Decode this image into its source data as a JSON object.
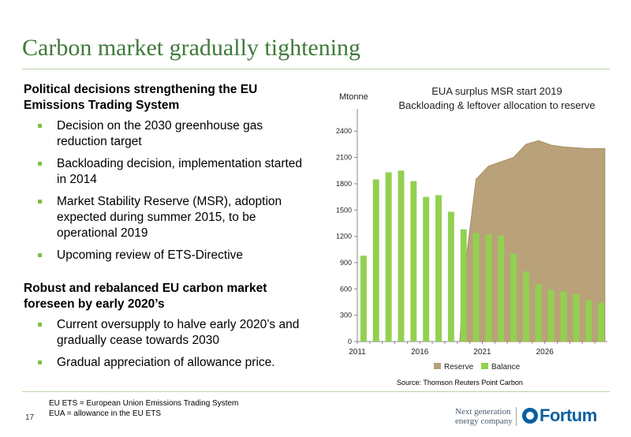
{
  "slide": {
    "title": "Carbon market gradually tightening",
    "page_number": "17"
  },
  "left": {
    "section1": {
      "heading": "Political decisions strengthening the EU Emissions Trading System",
      "bullets": [
        "Decision on the 2030 greenhouse gas reduction target",
        "Backloading decision, implementation started in 2014",
        "Market Stability Reserve (MSR), adoption expected during summer 2015, to be operational 2019",
        "Upcoming review of ETS-Directive"
      ]
    },
    "section2": {
      "heading": "Robust and rebalanced EU carbon market foreseen by early 2020’s",
      "bullets": [
        "Current oversupply to halve early 2020’s and gradually cease towards 2030",
        "Gradual appreciation of allowance price."
      ]
    }
  },
  "chart_data": {
    "type": "bar",
    "title_lines": [
      "EUA surplus MSR start 2019",
      "Backloading & leftover allocation to reserve"
    ],
    "ylabel": "Mtonne",
    "ylim": [
      0,
      2600
    ],
    "yticks": [
      0,
      300,
      600,
      900,
      1200,
      1500,
      1800,
      2100,
      2400
    ],
    "x": [
      2011,
      2012,
      2013,
      2014,
      2015,
      2016,
      2017,
      2018,
      2019,
      2020,
      2021,
      2022,
      2023,
      2024,
      2025,
      2026,
      2027,
      2028,
      2029,
      2030
    ],
    "xtick_labels": [
      "2011",
      "2016",
      "2021",
      "2026"
    ],
    "series": [
      {
        "name": "Reserve",
        "type": "area",
        "color": "#b9a27a",
        "values": [
          null,
          null,
          null,
          null,
          null,
          null,
          null,
          null,
          700,
          1850,
          2000,
          2050,
          2100,
          2250,
          2290,
          2240,
          2220,
          2210,
          2200,
          2200
        ]
      },
      {
        "name": "Balance",
        "type": "bar",
        "color": "#92d050",
        "values": [
          980,
          1850,
          1930,
          1950,
          1830,
          1650,
          1670,
          1480,
          1280,
          1240,
          1220,
          1210,
          1000,
          800,
          650,
          590,
          570,
          540,
          470,
          440
        ]
      }
    ],
    "legend": "bottom",
    "grid": false,
    "source": "Source: Thomson Reuters Point Carbon"
  },
  "footnote": {
    "line1": "EU ETS = European Union Emissions Trading System",
    "line2": "EUA = allowance in the EU ETS"
  },
  "branding": {
    "tagline_line1": "Next generation",
    "tagline_line2": "energy company",
    "logo_text": "Fortum",
    "logo_color": "#0a5fa0"
  }
}
